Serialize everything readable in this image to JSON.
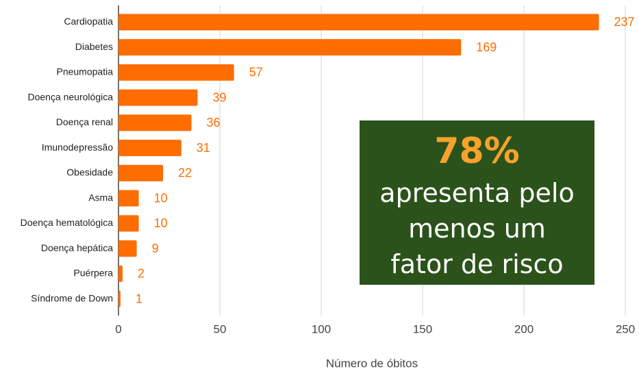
{
  "chart_data": {
    "type": "barh",
    "categories": [
      "Cardiopatia",
      "Diabetes",
      "Pneumopatia",
      "Doença neurológica",
      "Doença renal",
      "Imunodepressão",
      "Obesidade",
      "Asma",
      "Doença hematológica",
      "Doença hepática",
      "Puérpera",
      "Síndrome de Down"
    ],
    "values": [
      237,
      169,
      57,
      39,
      36,
      31,
      22,
      10,
      10,
      9,
      2,
      1
    ],
    "color": "#ff6d01",
    "x_label": "Número de óbitos",
    "xlim": [
      0,
      250
    ],
    "xticks": [
      0,
      50,
      100,
      150,
      200,
      250
    ],
    "grid": true,
    "annotation": {
      "highlight": "78%",
      "lines": [
        "apresenta pelo",
        "menos um",
        "fator de risco"
      ]
    }
  }
}
